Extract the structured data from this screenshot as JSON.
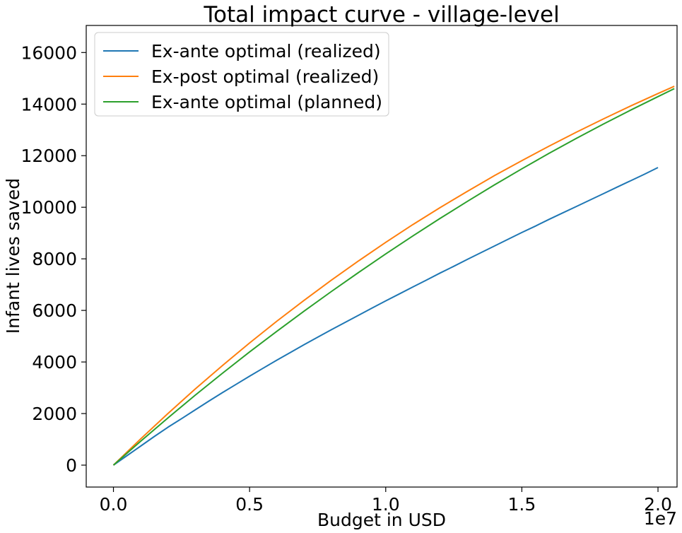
{
  "chart_data": {
    "type": "line",
    "title": "Total impact curve - village-level",
    "xlabel": "Budget in USD",
    "ylabel": "Infant lives saved",
    "x_offset_label": "1e7",
    "xlim": [
      -0.1,
      2.07
    ],
    "ylim": [
      -850,
      17050
    ],
    "xticks": [
      0.0,
      0.5,
      1.0,
      1.5,
      2.0
    ],
    "xtick_labels": [
      "0.0",
      "0.5",
      "1.0",
      "1.5",
      "2.0"
    ],
    "yticks": [
      0,
      2000,
      4000,
      6000,
      8000,
      10000,
      12000,
      14000,
      16000
    ],
    "ytick_labels": [
      "0",
      "2000",
      "4000",
      "6000",
      "8000",
      "10000",
      "12000",
      "14000",
      "16000"
    ],
    "grid": false,
    "legend_position": "top-left",
    "series": [
      {
        "name": "Ex-ante optimal (realized)",
        "color": "#1f77b4",
        "x": [
          0.0,
          0.05,
          0.1,
          0.15,
          0.2,
          0.25,
          0.3,
          0.35,
          0.4,
          0.45,
          0.5,
          0.55,
          0.6,
          0.65,
          0.7,
          0.75,
          0.8,
          0.85,
          0.9,
          0.95,
          1.0,
          1.05,
          1.1,
          1.15,
          1.2,
          1.25,
          1.3,
          1.35,
          1.4,
          1.45,
          1.5,
          1.55,
          1.6,
          1.65,
          1.7,
          1.75,
          1.8,
          1.85,
          1.9,
          1.95,
          2.0
        ],
        "y": [
          0,
          370,
          740,
          1110,
          1470,
          1800,
          2140,
          2480,
          2810,
          3130,
          3450,
          3760,
          4070,
          4370,
          4670,
          4960,
          5250,
          5530,
          5810,
          6090,
          6370,
          6640,
          6910,
          7180,
          7450,
          7710,
          7980,
          8240,
          8500,
          8760,
          9020,
          9270,
          9530,
          9780,
          10030,
          10280,
          10530,
          10780,
          11030,
          11280,
          11540
        ]
      },
      {
        "name": "Ex-post optimal (realized)",
        "color": "#ff7f0e",
        "x": [
          0.0,
          0.1,
          0.2,
          0.3,
          0.4,
          0.5,
          0.6,
          0.7,
          0.8,
          0.9,
          1.0,
          1.1,
          1.2,
          1.3,
          1.4,
          1.5,
          1.6,
          1.7,
          1.8,
          1.9,
          2.0,
          2.06
        ],
        "y": [
          0,
          1020,
          2000,
          2950,
          3860,
          4740,
          5580,
          6390,
          7170,
          7920,
          8640,
          9330,
          9990,
          10620,
          11230,
          11810,
          12370,
          12910,
          13430,
          13930,
          14410,
          14690
        ]
      },
      {
        "name": "Ex-ante optimal (planned)",
        "color": "#2ca02c",
        "x": [
          0.0,
          0.1,
          0.2,
          0.3,
          0.4,
          0.5,
          0.6,
          0.7,
          0.8,
          0.9,
          1.0,
          1.1,
          1.2,
          1.3,
          1.4,
          1.5,
          1.6,
          1.7,
          1.8,
          1.9,
          2.0,
          2.06
        ],
        "y": [
          0,
          930,
          1830,
          2710,
          3560,
          4390,
          5190,
          5970,
          6730,
          7470,
          8190,
          8890,
          9570,
          10230,
          10870,
          11490,
          12090,
          12670,
          13230,
          13770,
          14290,
          14600
        ]
      }
    ]
  }
}
